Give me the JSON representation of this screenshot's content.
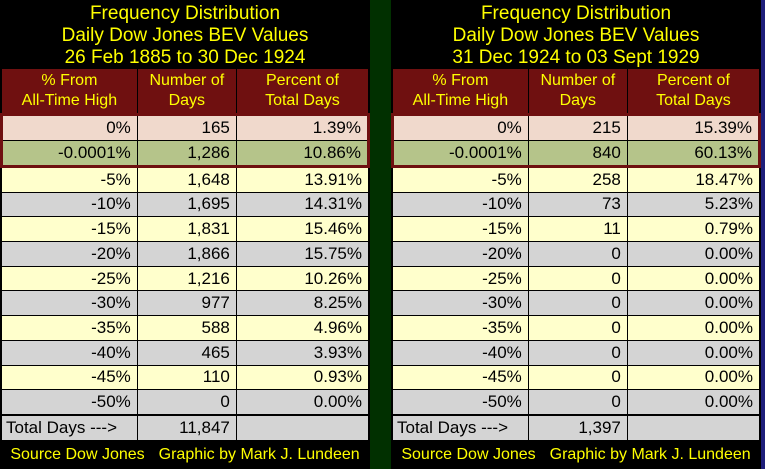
{
  "colors": {
    "maroon": "#6f1010",
    "pink": "#f0d9cc",
    "olive": "#b5c48a",
    "yellow": "#ffffcc",
    "gray": "#d4d4d4",
    "green": "#013000",
    "navy": "#1e1e7a",
    "titleyellow": "#ffff00"
  },
  "footer": {
    "source": "Source Dow Jones",
    "credit": "Graphic by Mark J. Lundeen"
  },
  "chart_data": [
    {
      "type": "table",
      "title_lines": [
        "Frequency Distribution",
        "Daily Dow Jones BEV Values",
        "26 Feb 1885 to 30 Dec 1924"
      ],
      "column_headers": [
        [
          "% From",
          "All-Time High"
        ],
        [
          "Number of",
          "Days"
        ],
        [
          "Percent of",
          "Total Days"
        ]
      ],
      "rows": [
        {
          "level": "0%",
          "days": "165",
          "percent": "1.39%",
          "tone": "pink"
        },
        {
          "level": "-0.0001%",
          "days": "1,286",
          "percent": "10.86%",
          "tone": "olive"
        },
        {
          "level": "-5%",
          "days": "1,648",
          "percent": "13.91%",
          "tone": "yellow"
        },
        {
          "level": "-10%",
          "days": "1,695",
          "percent": "14.31%",
          "tone": "gray"
        },
        {
          "level": "-15%",
          "days": "1,831",
          "percent": "15.46%",
          "tone": "yellow"
        },
        {
          "level": "-20%",
          "days": "1,866",
          "percent": "15.75%",
          "tone": "gray"
        },
        {
          "level": "-25%",
          "days": "1,216",
          "percent": "10.26%",
          "tone": "yellow"
        },
        {
          "level": "-30%",
          "days": "977",
          "percent": "8.25%",
          "tone": "gray"
        },
        {
          "level": "-35%",
          "days": "588",
          "percent": "4.96%",
          "tone": "yellow"
        },
        {
          "level": "-40%",
          "days": "465",
          "percent": "3.93%",
          "tone": "gray"
        },
        {
          "level": "-45%",
          "days": "110",
          "percent": "0.93%",
          "tone": "yellow"
        },
        {
          "level": "-50%",
          "days": "0",
          "percent": "0.00%",
          "tone": "gray"
        }
      ],
      "total_label": "Total Days --->",
      "total_days": "11,847"
    },
    {
      "type": "table",
      "title_lines": [
        "Frequency Distribution",
        "Daily Dow Jones BEV Values",
        "31 Dec 1924 to 03 Sept 1929"
      ],
      "column_headers": [
        [
          "% From",
          "All-Time High"
        ],
        [
          "Number of",
          "Days"
        ],
        [
          "Percent of",
          "Total Days"
        ]
      ],
      "rows": [
        {
          "level": "0%",
          "days": "215",
          "percent": "15.39%",
          "tone": "pink"
        },
        {
          "level": "-0.0001%",
          "days": "840",
          "percent": "60.13%",
          "tone": "olive"
        },
        {
          "level": "-5%",
          "days": "258",
          "percent": "18.47%",
          "tone": "yellow"
        },
        {
          "level": "-10%",
          "days": "73",
          "percent": "5.23%",
          "tone": "gray"
        },
        {
          "level": "-15%",
          "days": "11",
          "percent": "0.79%",
          "tone": "yellow"
        },
        {
          "level": "-20%",
          "days": "0",
          "percent": "0.00%",
          "tone": "gray"
        },
        {
          "level": "-25%",
          "days": "0",
          "percent": "0.00%",
          "tone": "yellow"
        },
        {
          "level": "-30%",
          "days": "0",
          "percent": "0.00%",
          "tone": "gray"
        },
        {
          "level": "-35%",
          "days": "0",
          "percent": "0.00%",
          "tone": "yellow"
        },
        {
          "level": "-40%",
          "days": "0",
          "percent": "0.00%",
          "tone": "gray"
        },
        {
          "level": "-45%",
          "days": "0",
          "percent": "0.00%",
          "tone": "yellow"
        },
        {
          "level": "-50%",
          "days": "0",
          "percent": "0.00%",
          "tone": "gray"
        }
      ],
      "total_label": "Total Days --->",
      "total_days": "1,397"
    }
  ]
}
